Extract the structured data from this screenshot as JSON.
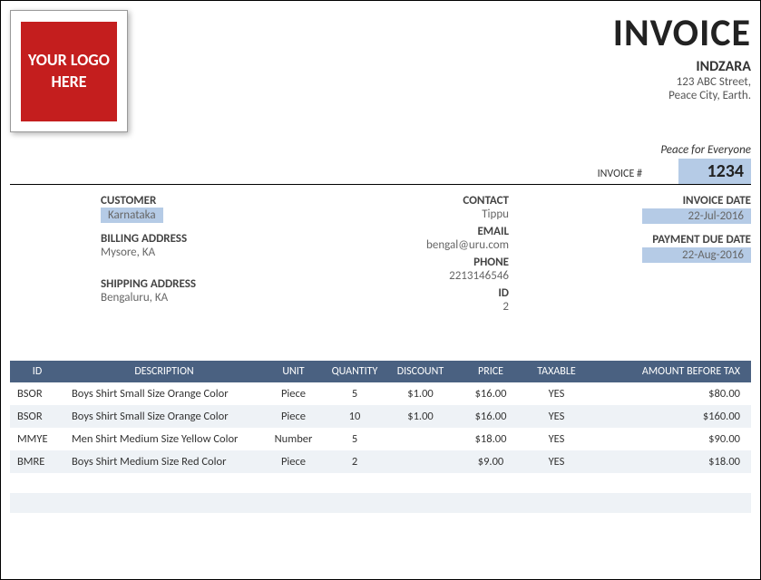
{
  "logo": {
    "text": "YOUR LOGO HERE",
    "bg_color": "#c41e1e",
    "text_color": "#ffffff"
  },
  "company": {
    "title": "INVOICE",
    "name": "INDZARA",
    "addr1": "123 ABC Street,",
    "addr2": "Peace City, Earth.",
    "tagline": "Peace for Everyone"
  },
  "invoice": {
    "num_label": "INVOICE #",
    "num": "1234",
    "date_label": "INVOICE DATE",
    "date": "22-Jul-2016",
    "due_label": "PAYMENT DUE DATE",
    "due": "22-Aug-2016"
  },
  "customer": {
    "heading": "CUSTOMER",
    "name": "Karnataka",
    "billing_heading": "BILLING ADDRESS",
    "billing": "Mysore, KA",
    "shipping_heading": "SHIPPING ADDRESS",
    "shipping": "Bengaluru, KA"
  },
  "contact": {
    "heading": "CONTACT",
    "name": "Tippu",
    "email_heading": "EMAIL",
    "email": "bengal@uru.com",
    "phone_heading": "PHONE",
    "phone": "2213146546",
    "id_heading": "ID",
    "id": "2"
  },
  "table": {
    "columns": [
      "ID",
      "DESCRIPTION",
      "UNIT",
      "QUANTITY",
      "DISCOUNT",
      "PRICE",
      "TAXABLE",
      "AMOUNT BEFORE TAX"
    ],
    "header_bg": "#4a6181",
    "header_fg": "#ffffff",
    "row_alt_bg": "#eef2f6",
    "highlight_bg": "#b5cbe6",
    "rows": [
      [
        "BSOR",
        "Boys Shirt Small Size Orange Color",
        "Piece",
        "5",
        "$1.00",
        "$16.00",
        "YES",
        "$80.00"
      ],
      [
        "BSOR",
        "Boys Shirt Small Size Orange Color",
        "Piece",
        "10",
        "$1.00",
        "$16.00",
        "YES",
        "$160.00"
      ],
      [
        "MMYE",
        "Men Shirt Medium Size Yellow Color",
        "Number",
        "5",
        "",
        "$18.00",
        "YES",
        "$90.00"
      ],
      [
        "BMRE",
        "Boys Shirt Medium Size Red Color",
        "Piece",
        "2",
        "",
        "$9.00",
        "YES",
        "$18.00"
      ]
    ]
  }
}
